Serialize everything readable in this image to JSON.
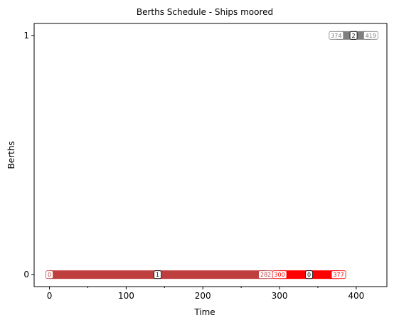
{
  "chart_data": {
    "type": "gantt",
    "title": "Berths Schedule - Ships moored",
    "xlabel": "Time",
    "ylabel": "Berths",
    "xlim": [
      -20,
      440
    ],
    "ylim": [
      -0.05,
      1.05
    ],
    "xticks": [
      0,
      100,
      200,
      300,
      400
    ],
    "xticks_minor": [
      50,
      150,
      250,
      350
    ],
    "yticks": [
      0,
      1
    ],
    "grid": false,
    "series": [
      {
        "berth": 0,
        "ship": "1",
        "start": 0,
        "end": 282,
        "start_label": "0",
        "end_label": "282",
        "color": "#bf3f3f"
      },
      {
        "berth": 0,
        "ship": "0",
        "start": 300,
        "end": 377,
        "start_label": "300",
        "end_label": "377",
        "color": "#ff0000"
      },
      {
        "berth": 1,
        "ship": "2",
        "start": 374,
        "end": 419,
        "start_label": "374",
        "end_label": "419",
        "color": "#808080"
      }
    ]
  }
}
